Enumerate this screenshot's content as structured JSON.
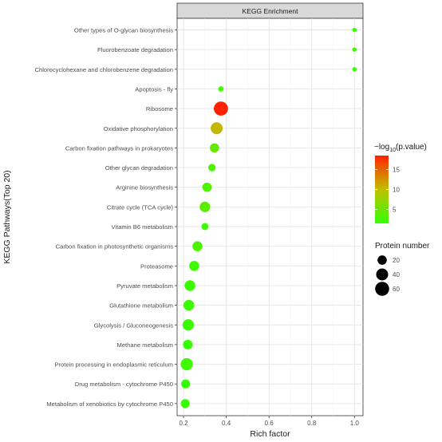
{
  "chart_data": {
    "type": "scatter",
    "facet_title": "KEGG Enrichment",
    "xlabel": "Rich factor",
    "ylabel": "KEGG Pathways(Top 20)",
    "xlim": [
      0.17,
      1.04
    ],
    "x_ticks": [
      0.2,
      0.4,
      0.6,
      0.8,
      1.0
    ],
    "x_tick_labels": [
      "0.2",
      "0.4",
      "0.6",
      "0.8",
      "1.0"
    ],
    "grid": true,
    "color_legend": {
      "title_prefix": "−log",
      "title_subscript": "10",
      "title_suffix": "(p.value)",
      "ticks": [
        5,
        10,
        15
      ],
      "tick_labels": [
        "5",
        "10",
        "15"
      ],
      "range": [
        1.5,
        18.5
      ],
      "low_color": "#33ff00",
      "mid_color": "#c0c000",
      "high_color": "#ff2200"
    },
    "size_legend": {
      "title": "Protein number",
      "values": [
        20,
        40,
        60
      ],
      "value_labels": [
        "20",
        "40",
        "60"
      ]
    },
    "pathways": [
      "Other types of O-glycan biosynthesis",
      "Fluorobenzoate degradation",
      "Chlorocyclohexane and chlorobenzene degradation",
      "Apoptosis - fly",
      "Ribosome",
      "Oxidative phosphorylation",
      "Carbon fixation pathways in prokaryotes",
      "Other glycan degradation",
      "Arginine biosynthesis",
      "Citrate cycle (TCA cycle)",
      "Vitamin B6 metabolism",
      "Carbon fixation in photosynthetic organisms",
      "Proteasome",
      "Pyruvate metabolism",
      "Glutathione metabolism",
      "Glycolysis / Gluconeogenesis",
      "Methane metabolism",
      "Protein processing in endoplasmic reticulum",
      "Drug metabolism - cytochrome P450",
      "Metabolism of xenobiotics by cytochrome P450"
    ],
    "rich_factor": [
      1.0,
      1.0,
      1.0,
      0.375,
      0.375,
      0.355,
      0.345,
      0.333,
      0.31,
      0.3,
      0.3,
      0.265,
      0.25,
      0.23,
      0.225,
      0.222,
      0.22,
      0.215,
      0.21,
      0.208
    ],
    "protein_number": [
      1,
      1,
      1,
      3,
      62,
      40,
      20,
      10,
      20,
      28,
      8,
      25,
      25,
      30,
      30,
      35,
      22,
      42,
      18,
      18
    ],
    "neg_log10_p": [
      1.8,
      1.8,
      1.8,
      2.5,
      18.5,
      10.5,
      4.5,
      3.0,
      3.0,
      3.8,
      2.0,
      3.0,
      2.2,
      2.0,
      2.0,
      2.0,
      1.8,
      2.2,
      1.6,
      1.6
    ]
  }
}
